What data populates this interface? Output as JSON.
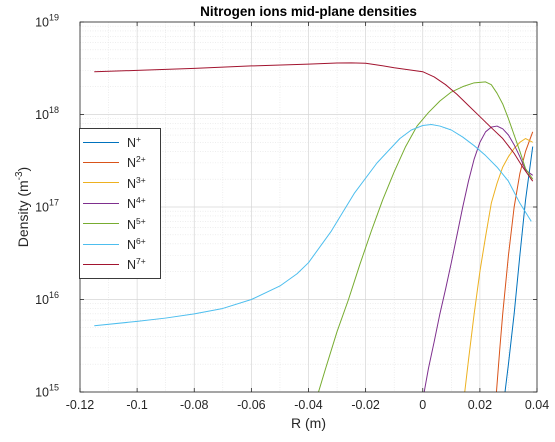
{
  "chart_data": {
    "type": "line",
    "title": "Nitrogen ions mid-plane densities",
    "xlabel": "R (m)",
    "ylabel_base": "Density (m",
    "ylabel_exp": "-3",
    "ylabel_tail": ")",
    "xlim": [
      -0.12,
      0.04
    ],
    "ylim": [
      1000000000000000.0,
      1e+19
    ],
    "yscale": "log",
    "grid": true,
    "minor_grid": true,
    "legend_position": "left",
    "x_ticks": [
      {
        "value": -0.12,
        "label": "-0.12"
      },
      {
        "value": -0.1,
        "label": "-0.1"
      },
      {
        "value": -0.08,
        "label": "-0.08"
      },
      {
        "value": -0.06,
        "label": "-0.06"
      },
      {
        "value": -0.04,
        "label": "-0.04"
      },
      {
        "value": -0.02,
        "label": "-0.02"
      },
      {
        "value": 0,
        "label": "0"
      },
      {
        "value": 0.02,
        "label": "0.02"
      },
      {
        "value": 0.04,
        "label": "0.04"
      }
    ],
    "y_ticks": [
      {
        "value": 1000000000000000.0,
        "base": "10",
        "exp": "15"
      },
      {
        "value": 1e+16,
        "base": "10",
        "exp": "16"
      },
      {
        "value": 1e+17,
        "base": "10",
        "exp": "17"
      },
      {
        "value": 1e+18,
        "base": "10",
        "exp": "18"
      },
      {
        "value": 1e+19,
        "base": "10",
        "exp": "19"
      }
    ],
    "series": [
      {
        "name": "N",
        "sup": "+",
        "color": "#0072BD",
        "x": [
          0.0288,
          0.03,
          0.032,
          0.034,
          0.036,
          0.0385
        ],
        "y": [
          1000000000000000.0,
          2000000000000000.0,
          7000000000000000.0,
          3e+16,
          1.2e+17,
          4.5e+17
        ]
      },
      {
        "name": "N",
        "sup": "2+",
        "color": "#D95319",
        "x": [
          0.0258,
          0.027,
          0.028,
          0.03,
          0.032,
          0.034,
          0.036,
          0.0385
        ],
        "y": [
          1000000000000000.0,
          3000000000000000.0,
          7000000000000000.0,
          3e+16,
          1e+17,
          2.3e+17,
          4e+17,
          6.5e+17
        ]
      },
      {
        "name": "N",
        "sup": "3+",
        "color": "#EDB120",
        "x": [
          0.0147,
          0.016,
          0.018,
          0.02,
          0.022,
          0.024,
          0.026,
          0.028,
          0.03,
          0.032,
          0.034,
          0.036,
          0.0385
        ],
        "y": [
          1000000000000000.0,
          2200000000000000.0,
          7000000000000000.0,
          2e+16,
          4.8e+16,
          1.1e+17,
          1.8e+17,
          2.7e+17,
          3.5e+17,
          4.3e+17,
          5e+17,
          5.5e+17,
          5e+17
        ]
      },
      {
        "name": "N",
        "sup": "4+",
        "color": "#7E2F8E",
        "x": [
          0.0005,
          0.002,
          0.004,
          0.006,
          0.008,
          0.01,
          0.012,
          0.014,
          0.016,
          0.018,
          0.02,
          0.022,
          0.024,
          0.026,
          0.028,
          0.03,
          0.032,
          0.034,
          0.036,
          0.0385
        ],
        "y": [
          1000000000000000.0,
          1800000000000000.0,
          3500000000000000.0,
          7000000000000000.0,
          1.3e+16,
          2.5e+16,
          5e+16,
          1e+17,
          1.9e+17,
          3.3e+17,
          5e+17,
          6.5e+17,
          7.3e+17,
          7.5e+17,
          7e+17,
          6e+17,
          4.7e+17,
          3.5e+17,
          2.5e+17,
          2.2e+17
        ]
      },
      {
        "name": "N",
        "sup": "5+",
        "color": "#77AC30",
        "x": [
          -0.0365,
          -0.034,
          -0.03,
          -0.026,
          -0.022,
          -0.018,
          -0.014,
          -0.01,
          -0.006,
          -0.002,
          0.002,
          0.006,
          0.01,
          0.014,
          0.018,
          0.022,
          0.024,
          0.026,
          0.028,
          0.03,
          0.032,
          0.034,
          0.036,
          0.0385
        ],
        "y": [
          1000000000000000.0,
          1800000000000000.0,
          4500000000000000.0,
          1e+16,
          2.4e+16,
          5.5e+16,
          1.2e+17,
          2.4e+17,
          4.5e+17,
          7.5e+17,
          1.05e+18,
          1.4e+18,
          1.75e+18,
          2e+18,
          2.2e+18,
          2.25e+18,
          2.1e+18,
          1.7e+18,
          1.3e+18,
          9e+17,
          6e+17,
          4e+17,
          2.6e+17,
          2e+17
        ]
      },
      {
        "name": "N",
        "sup": "6+",
        "color": "#4DBEEE",
        "x": [
          -0.115,
          -0.1,
          -0.09,
          -0.08,
          -0.07,
          -0.06,
          -0.05,
          -0.044,
          -0.04,
          -0.032,
          -0.024,
          -0.016,
          -0.008,
          -0.004,
          0.0,
          0.003,
          0.006,
          0.01,
          0.014,
          0.018,
          0.022,
          0.026,
          0.03,
          0.034,
          0.038
        ],
        "y": [
          5200000000000000.0,
          5800000000000000.0,
          6300000000000000.0,
          7000000000000000.0,
          8000000000000000.0,
          1e+16,
          1.4e+16,
          1.9e+16,
          2.5e+16,
          5.5e+16,
          1.4e+17,
          3e+17,
          5.5e+17,
          6.8e+17,
          7.6e+17,
          7.8e+17,
          7.5e+17,
          6.8e+17,
          5.7e+17,
          4.6e+17,
          3.6e+17,
          2.7e+17,
          1.9e+17,
          1.1e+17,
          7e+16
        ]
      },
      {
        "name": "N",
        "sup": "7+",
        "color": "#A2142F",
        "x": [
          -0.115,
          -0.1,
          -0.08,
          -0.06,
          -0.04,
          -0.03,
          -0.025,
          -0.02,
          -0.015,
          -0.01,
          -0.005,
          0.0,
          0.004,
          0.008,
          0.012,
          0.016,
          0.02,
          0.024,
          0.028,
          0.032,
          0.035,
          0.0385
        ],
        "y": [
          2.9e+18,
          3e+18,
          3.15e+18,
          3.35e+18,
          3.5e+18,
          3.6e+18,
          3.62e+18,
          3.58e+18,
          3.4e+18,
          3.2e+18,
          3.05e+18,
          2.9e+18,
          2.55e+18,
          2.1e+18,
          1.65e+18,
          1.25e+18,
          9.5e+17,
          7.2e+17,
          5.5e+17,
          3.8e+17,
          2.7e+17,
          1.9e+17
        ]
      }
    ]
  }
}
